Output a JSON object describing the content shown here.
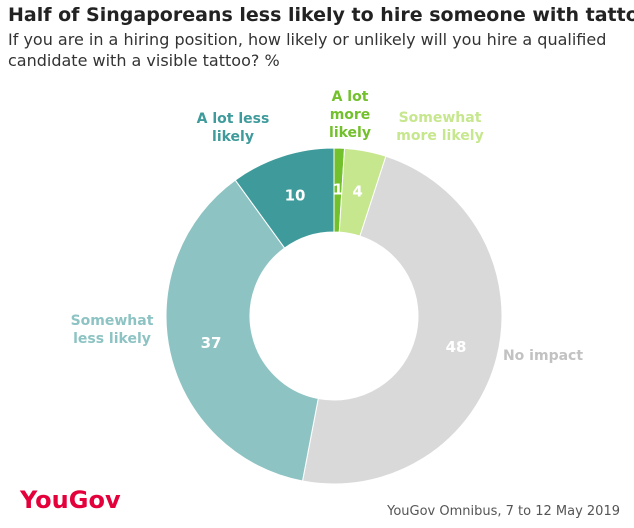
{
  "chart_data": {
    "type": "donut",
    "title": "Half of Singaporeans less likely to hire someone with tattoo",
    "subtitle": "If you are in a hiring position, how likely or unlikely will you hire a qualified candidate with a visible tattoo? %",
    "categories": [
      "A lot more likely",
      "Somewhat more likely",
      "No impact",
      "Somewhat less likely",
      "A lot less likely"
    ],
    "values": [
      1,
      4,
      48,
      37,
      10
    ],
    "colors": [
      "#72c02c",
      "#c6e78d",
      "#d9d9d9",
      "#8dc3c3",
      "#3f9b9b"
    ],
    "label_colors": [
      "#72c02c",
      "#c6e78d",
      "#c2c2c2",
      "#8dc3c3",
      "#3f9b9b"
    ],
    "logo": "YouGov",
    "source": "YouGov Omnibus, 7 to 12 May 2019"
  }
}
